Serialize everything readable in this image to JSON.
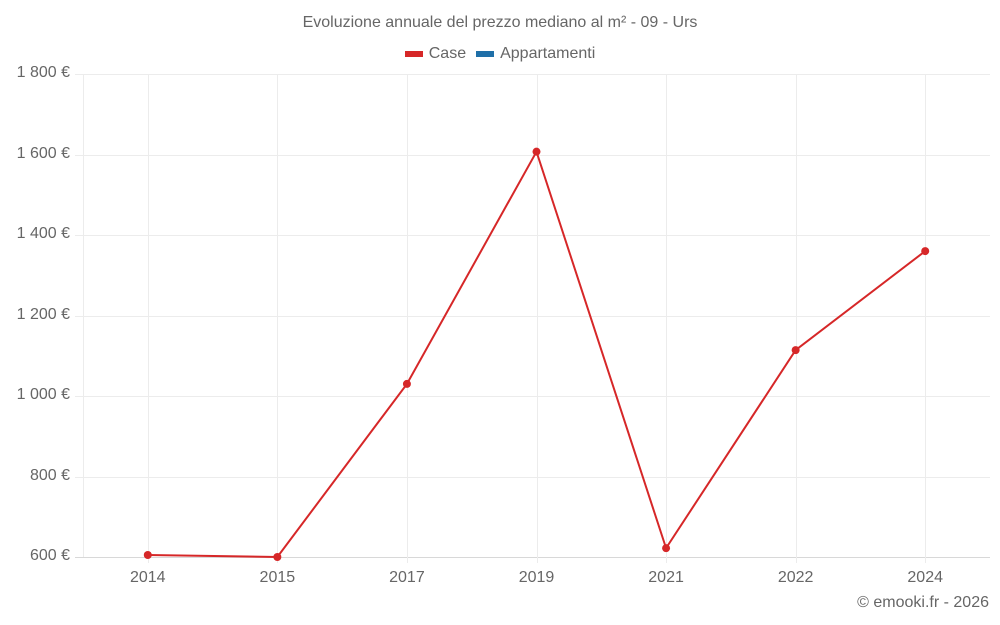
{
  "chart_data": {
    "type": "line",
    "title": "Evoluzione annuale del prezzo mediano al m² - 09 - Urs",
    "categories": [
      "2014",
      "2015",
      "2017",
      "2019",
      "2021",
      "2022",
      "2024"
    ],
    "series": [
      {
        "name": "Case",
        "color": "#d62728",
        "values": [
          605,
          600,
          1030,
          1607,
          622,
          1114,
          1360
        ]
      },
      {
        "name": "Appartamenti",
        "color": "#1f6fa8",
        "values": []
      }
    ],
    "xlabel": "",
    "ylabel": "",
    "ylim": [
      600,
      1800
    ],
    "yticks": [
      "600 €",
      "800 €",
      "1 000 €",
      "1 200 €",
      "1 400 €",
      "1 600 €",
      "1 800 €"
    ],
    "grid": true,
    "legend_position": "top"
  },
  "title": "Evoluzione annuale del prezzo mediano al m² - 09 - Urs",
  "legend": [
    {
      "label": "Case",
      "color": "#d62728"
    },
    {
      "label": "Appartamenti",
      "color": "#1f6fa8"
    }
  ],
  "y_axis": {
    "ticks": [
      {
        "label": "1 800 €",
        "value": 1800
      },
      {
        "label": "1 600 €",
        "value": 1600
      },
      {
        "label": "1 400 €",
        "value": 1400
      },
      {
        "label": "1 200 €",
        "value": 1200
      },
      {
        "label": "1 000 €",
        "value": 1000
      },
      {
        "label": "800 €",
        "value": 800
      },
      {
        "label": "600 €",
        "value": 600
      }
    ]
  },
  "x_axis": {
    "ticks": [
      "2014",
      "2015",
      "2017",
      "2019",
      "2021",
      "2022",
      "2024"
    ]
  },
  "credit": "© emooki.fr - 2026"
}
